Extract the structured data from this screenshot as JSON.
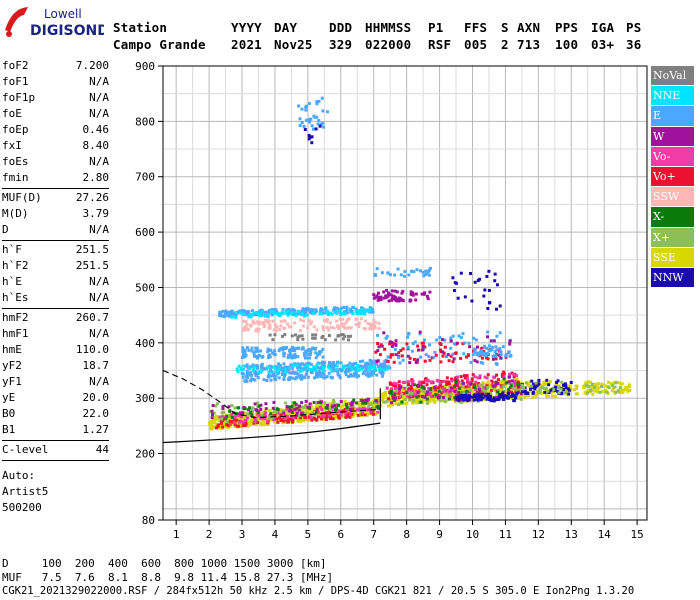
{
  "logo": {
    "line1": "Lowell",
    "line2": "DIGISONDE",
    "accent_color": "#d91a1a"
  },
  "header": {
    "labels": [
      "Station",
      "YYYY",
      "DAY",
      "DDD",
      "HHMMSS",
      "P1",
      "FFS",
      "S",
      "AXN",
      "PPS",
      "IGA",
      "PS"
    ],
    "values": [
      "Campo Grande",
      "2021",
      "Nov25",
      "329",
      "022000",
      "RSF",
      "005",
      "2",
      "713",
      "100",
      "03+",
      "36"
    ]
  },
  "parameters": {
    "group1": [
      {
        "label": "foF2",
        "value": "7.200"
      },
      {
        "label": "foF1",
        "value": "N/A"
      },
      {
        "label": "foF1p",
        "value": "N/A"
      },
      {
        "label": "foE",
        "value": "N/A"
      },
      {
        "label": "foEp",
        "value": "0.46"
      },
      {
        "label": "fxI",
        "value": "8.40"
      },
      {
        "label": "foEs",
        "value": "N/A"
      },
      {
        "label": "fmin",
        "value": "2.80"
      }
    ],
    "group2": [
      {
        "label": "MUF(D)",
        "value": "27.26"
      },
      {
        "label": "M(D)",
        "value": "3.79"
      },
      {
        "label": "D",
        "value": "N/A"
      }
    ],
    "group3": [
      {
        "label": "h`F",
        "value": "251.5"
      },
      {
        "label": "h`F2",
        "value": "251.5"
      },
      {
        "label": "h`E",
        "value": "N/A"
      },
      {
        "label": "h`Es",
        "value": "N/A"
      }
    ],
    "group4": [
      {
        "label": "hmF2",
        "value": "260.7"
      },
      {
        "label": "hmF1",
        "value": "N/A"
      },
      {
        "label": "hmE",
        "value": "110.0"
      },
      {
        "label": "yF2",
        "value": "18.7"
      },
      {
        "label": "yF1",
        "value": "N/A"
      },
      {
        "label": "yE",
        "value": "20.0"
      },
      {
        "label": "B0",
        "value": "22.0"
      },
      {
        "label": "B1",
        "value": "1.27"
      }
    ],
    "group5": [
      {
        "label": "C-level",
        "value": "44"
      }
    ],
    "autoscaling": [
      "Auto:",
      "Artist5",
      "500200"
    ]
  },
  "legend": [
    {
      "label": "NoVal",
      "color": "#808080"
    },
    {
      "label": "NNE",
      "color": "#00e5ff"
    },
    {
      "label": "E",
      "color": "#4aa8ff"
    },
    {
      "label": "W",
      "color": "#a0129c"
    },
    {
      "label": "Vo-",
      "color": "#f03ca6"
    },
    {
      "label": "Vo+",
      "color": "#ee1030"
    },
    {
      "label": "SSW",
      "color": "#ffb6b6"
    },
    {
      "label": "X-",
      "color": "#0a7a0a"
    },
    {
      "label": "X+",
      "color": "#8cbf56"
    },
    {
      "label": "SSE",
      "color": "#d8d800"
    },
    {
      "label": "NNW",
      "color": "#1a0ab0"
    }
  ],
  "footer": {
    "d_row": "D     100  200  400  600  800 1000 1500 3000 [km]",
    "muf_row": "MUF   7.5  7.6  8.1  8.8  9.8 11.4 15.8 27.3 [MHz]",
    "info_row": "CGK21_2021329022000.RSF / 284fx512h 50 kHz 2.5 km / DPS-4D CGK21 821 / 20.5 S 305.0 E Ion2Png 1.3.20"
  },
  "chart_data": {
    "type": "scatter",
    "xlim": [
      0.6,
      15.3
    ],
    "ylim": [
      80,
      900
    ],
    "x_ticks": [
      1,
      2,
      3,
      4,
      5,
      6,
      7,
      8,
      9,
      10,
      11,
      12,
      13,
      14,
      15
    ],
    "y_ticks": [
      80,
      200,
      300,
      400,
      500,
      600,
      700,
      800,
      900
    ],
    "grid": true,
    "bands": [
      {
        "x0": 2.0,
        "x1": 7.2,
        "y_lo0": 243,
        "y_hi0": 266,
        "y_lo1": 271,
        "y_hi1": 301,
        "color": "#d8d800",
        "n": 600
      },
      {
        "x0": 2.2,
        "x1": 7.0,
        "y_lo0": 246,
        "y_hi0": 262,
        "y_lo1": 268,
        "y_hi1": 285,
        "color": "#ee1030",
        "n": 140
      },
      {
        "x0": 2.1,
        "x1": 7.2,
        "y_lo0": 250,
        "y_hi0": 270,
        "y_lo1": 275,
        "y_hi1": 295,
        "color": "#f03ca6",
        "n": 90
      },
      {
        "x0": 2.0,
        "x1": 7.2,
        "y_lo0": 255,
        "y_hi0": 290,
        "y_lo1": 280,
        "y_hi1": 300,
        "color": "#8cbf56",
        "n": 60
      },
      {
        "x0": 2.0,
        "x1": 7.2,
        "y_lo0": 262,
        "y_hi0": 290,
        "y_lo1": 282,
        "y_hi1": 300,
        "color": "#a0129c",
        "n": 60
      },
      {
        "x0": 2.5,
        "x1": 7.2,
        "y_lo0": 260,
        "y_hi0": 285,
        "y_lo1": 280,
        "y_hi1": 300,
        "color": "#0a7a0a",
        "n": 40
      },
      {
        "x0": 7.2,
        "x1": 11.5,
        "y_lo0": 285,
        "y_hi0": 312,
        "y_lo1": 300,
        "y_hi1": 335,
        "color": "#d8d800",
        "n": 420
      },
      {
        "x0": 7.4,
        "x1": 11.5,
        "y_lo0": 295,
        "y_hi0": 330,
        "y_lo1": 312,
        "y_hi1": 350,
        "color": "#ee1030",
        "n": 160
      },
      {
        "x0": 7.4,
        "x1": 11.5,
        "y_lo0": 298,
        "y_hi0": 328,
        "y_lo1": 310,
        "y_hi1": 348,
        "color": "#f03ca6",
        "n": 90
      },
      {
        "x0": 7.3,
        "x1": 11.5,
        "y_lo0": 286,
        "y_hi0": 312,
        "y_lo1": 296,
        "y_hi1": 330,
        "color": "#8cbf56",
        "n": 70
      },
      {
        "x0": 7.3,
        "x1": 11.5,
        "y_lo0": 290,
        "y_hi0": 320,
        "y_lo1": 300,
        "y_hi1": 340,
        "color": "#0a7a0a",
        "n": 40
      },
      {
        "x0": 7.3,
        "x1": 11.5,
        "y_lo0": 290,
        "y_hi0": 320,
        "y_lo1": 300,
        "y_hi1": 340,
        "color": "#a0129c",
        "n": 40
      },
      {
        "x0": 9.5,
        "x1": 11.4,
        "y_lo0": 295,
        "y_hi0": 305,
        "y_lo1": 295,
        "y_hi1": 310,
        "color": "#1a0ab0",
        "n": 90
      },
      {
        "x0": 11.5,
        "x1": 14.8,
        "y_lo0": 300,
        "y_hi0": 330,
        "y_lo1": 310,
        "y_hi1": 330,
        "color": "#d8d800",
        "n": 150
      },
      {
        "x0": 11.5,
        "x1": 13.0,
        "y_lo0": 305,
        "y_hi0": 335,
        "y_lo1": 305,
        "y_hi1": 330,
        "color": "#1a0ab0",
        "n": 50
      },
      {
        "x0": 11.5,
        "x1": 14.5,
        "y_lo0": 308,
        "y_hi0": 330,
        "y_lo1": 310,
        "y_hi1": 328,
        "color": "#8cbf56",
        "n": 40
      },
      {
        "x0": 3.0,
        "x1": 7.5,
        "y_lo0": 330,
        "y_hi0": 360,
        "y_lo1": 340,
        "y_hi1": 370,
        "color": "#4aa8ff",
        "n": 340
      },
      {
        "x0": 2.8,
        "x1": 7.5,
        "y_lo0": 345,
        "y_hi0": 358,
        "y_lo1": 350,
        "y_hi1": 362,
        "color": "#00e5ff",
        "n": 70
      },
      {
        "x0": 3.0,
        "x1": 5.5,
        "y_lo0": 372,
        "y_hi0": 392,
        "y_lo1": 372,
        "y_hi1": 392,
        "color": "#4aa8ff",
        "n": 110
      },
      {
        "x0": 2.3,
        "x1": 7.0,
        "y_lo0": 447,
        "y_hi0": 457,
        "y_lo1": 455,
        "y_hi1": 466,
        "color": "#4aa8ff",
        "n": 200
      },
      {
        "x0": 2.3,
        "x1": 7.0,
        "y_lo0": 445,
        "y_hi0": 455,
        "y_lo1": 450,
        "y_hi1": 460,
        "color": "#00e5ff",
        "n": 80
      },
      {
        "x0": 3.0,
        "x1": 7.2,
        "y_lo0": 420,
        "y_hi0": 440,
        "y_lo1": 425,
        "y_hi1": 445,
        "color": "#ffb6b6",
        "n": 120
      },
      {
        "x0": 3.5,
        "x1": 6.5,
        "y_lo0": 405,
        "y_hi0": 415,
        "y_lo1": 405,
        "y_hi1": 415,
        "color": "#808080",
        "n": 30
      },
      {
        "x0": 7.0,
        "x1": 11.2,
        "y_lo0": 360,
        "y_hi0": 400,
        "y_lo1": 370,
        "y_hi1": 400,
        "color": "#ee1030",
        "n": 70
      },
      {
        "x0": 7.0,
        "x1": 11.2,
        "y_lo0": 360,
        "y_hi0": 420,
        "y_lo1": 360,
        "y_hi1": 420,
        "color": "#4aa8ff",
        "n": 60
      },
      {
        "x0": 7.0,
        "x1": 11.2,
        "y_lo0": 360,
        "y_hi0": 420,
        "y_lo1": 360,
        "y_hi1": 420,
        "color": "#a0129c",
        "n": 40
      },
      {
        "x0": 7.0,
        "x1": 8.8,
        "y_lo0": 475,
        "y_hi0": 495,
        "y_lo1": 475,
        "y_hi1": 495,
        "color": "#a0129c",
        "n": 60
      },
      {
        "x0": 7.0,
        "x1": 8.8,
        "y_lo0": 520,
        "y_hi0": 535,
        "y_lo1": 520,
        "y_hi1": 535,
        "color": "#4aa8ff",
        "n": 30
      },
      {
        "x0": 9.4,
        "x1": 11.0,
        "y_lo0": 460,
        "y_hi0": 530,
        "y_lo1": 460,
        "y_hi1": 530,
        "color": "#1a0ab0",
        "n": 25
      },
      {
        "x0": 10.0,
        "x1": 11.2,
        "y_lo0": 375,
        "y_hi0": 395,
        "y_lo1": 375,
        "y_hi1": 395,
        "color": "#4aa8ff",
        "n": 40
      },
      {
        "x0": 4.7,
        "x1": 5.6,
        "y_lo0": 780,
        "y_hi0": 840,
        "y_lo1": 790,
        "y_hi1": 845,
        "color": "#4aa8ff",
        "n": 30
      },
      {
        "x0": 4.9,
        "x1": 5.5,
        "y_lo0": 760,
        "y_hi0": 800,
        "y_lo1": 760,
        "y_hi1": 800,
        "color": "#1a0ab0",
        "n": 8
      }
    ],
    "profile_curve": {
      "color": "#000000",
      "points": [
        [
          7.2,
          255
        ],
        [
          6.0,
          245
        ],
        [
          5.0,
          238
        ],
        [
          4.0,
          232
        ],
        [
          3.0,
          228
        ],
        [
          2.2,
          225
        ],
        [
          1.0,
          221
        ],
        [
          0.6,
          220
        ]
      ]
    },
    "profile_dashed": {
      "color": "#000000",
      "points": [
        [
          0.6,
          350
        ],
        [
          1.2,
          335
        ],
        [
          1.8,
          315
        ],
        [
          2.4,
          290
        ],
        [
          2.8,
          272
        ],
        [
          3.4,
          265
        ],
        [
          4.5,
          268
        ],
        [
          6.0,
          275
        ],
        [
          7.2,
          280
        ]
      ]
    },
    "trace_vertical": {
      "x": 7.2,
      "y0": 262,
      "y1": 318
    }
  }
}
